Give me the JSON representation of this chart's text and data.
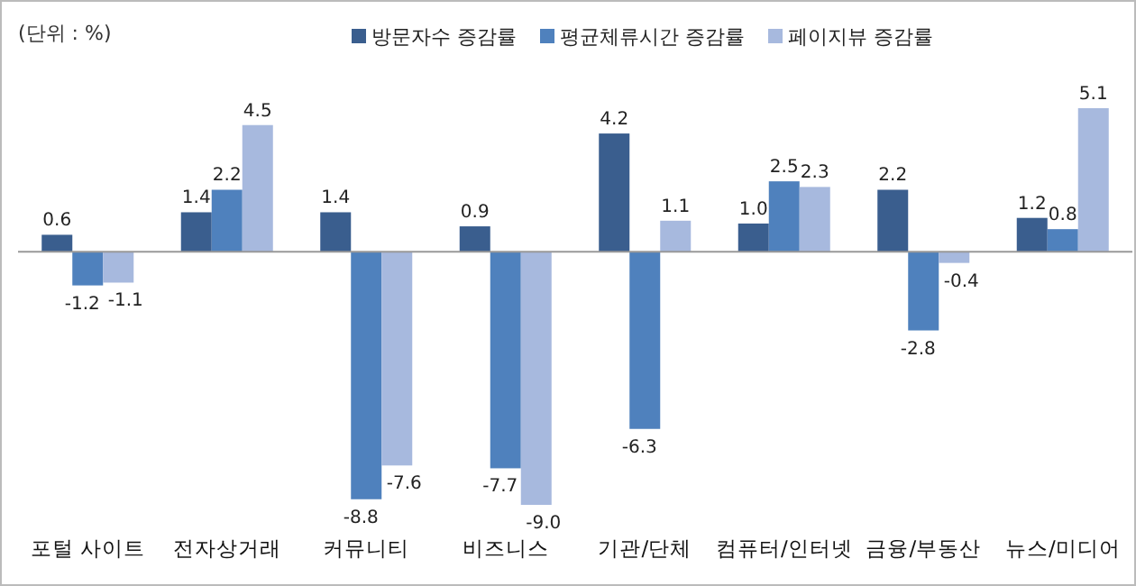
{
  "chart_data": {
    "type": "bar",
    "annotations": [
      "(단위 : %)"
    ],
    "categories": [
      "포털 사이트",
      "전자상거래",
      "커뮤니티",
      "비즈니스",
      "기관/단체",
      "컴퓨터/인터넷",
      "금융/부동산",
      "뉴스/미디어"
    ],
    "series": [
      {
        "name": "방문자수 증감률",
        "color": "#3a5e8e",
        "values": [
          0.6,
          1.4,
          1.4,
          0.9,
          4.2,
          1.0,
          2.2,
          1.2
        ],
        "value_labels": [
          "0.6",
          "1.4",
          "1.4",
          "0.9",
          "4.2",
          "1.0",
          "2.2",
          "1.2"
        ]
      },
      {
        "name": "평균체류시간 증감률",
        "color": "#4f81bd",
        "values": [
          -1.2,
          2.2,
          -8.8,
          -7.7,
          -6.3,
          2.5,
          -2.8,
          0.8
        ],
        "value_labels": [
          "-1.2",
          "2.2",
          "-8.8",
          "-7.7",
          "-6.3",
          "2.5",
          "-2.8",
          "0.8"
        ]
      },
      {
        "name": "페이지뷰 증감률",
        "color": "#a7b9de",
        "values": [
          -1.1,
          4.5,
          -7.6,
          -9.0,
          1.1,
          2.3,
          -0.4,
          5.1
        ],
        "value_labels": [
          "-1.1",
          "4.5",
          "-7.6",
          "-9.0",
          "1.1",
          "2.3",
          "-0.4",
          "5.1"
        ]
      }
    ],
    "legend": "top"
  }
}
